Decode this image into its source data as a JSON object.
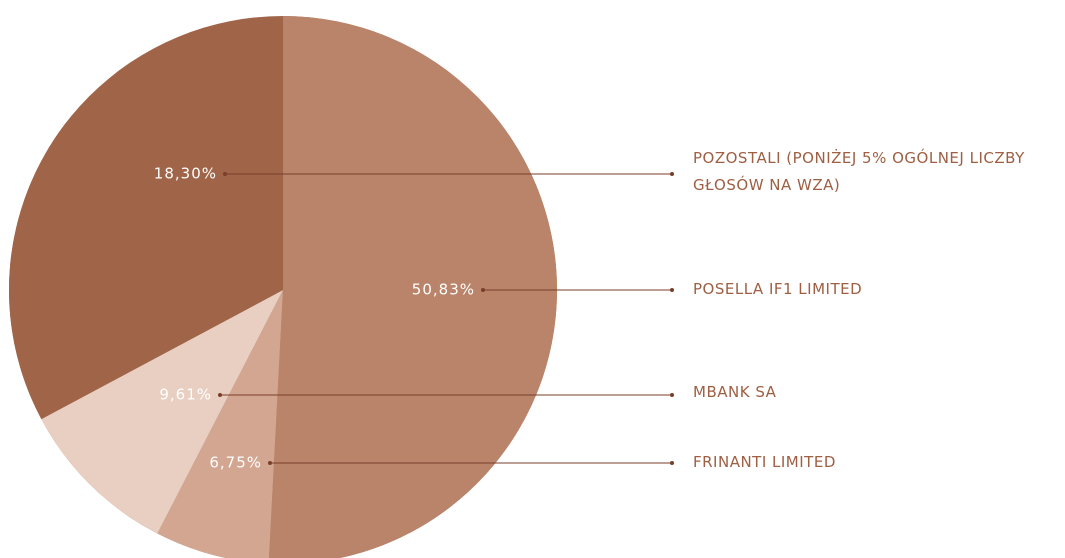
{
  "chart_data": {
    "type": "pie",
    "categories": [
      "POSELLA IF1 LIMITED",
      "FRINANTI LIMITED",
      "MBANK SA",
      "POZOSTALI (PONIŻEJ 5% OGÓLNEJ LICZBY GŁOSÓW NA WZA)"
    ],
    "values": [
      50.83,
      6.75,
      9.61,
      18.3
    ],
    "value_labels": [
      "50,83%",
      "6,75%",
      "9,61%",
      "18,30%"
    ],
    "colors": [
      "#b98469",
      "#d2a690",
      "#e8cfc1",
      "#a06448"
    ]
  }
}
